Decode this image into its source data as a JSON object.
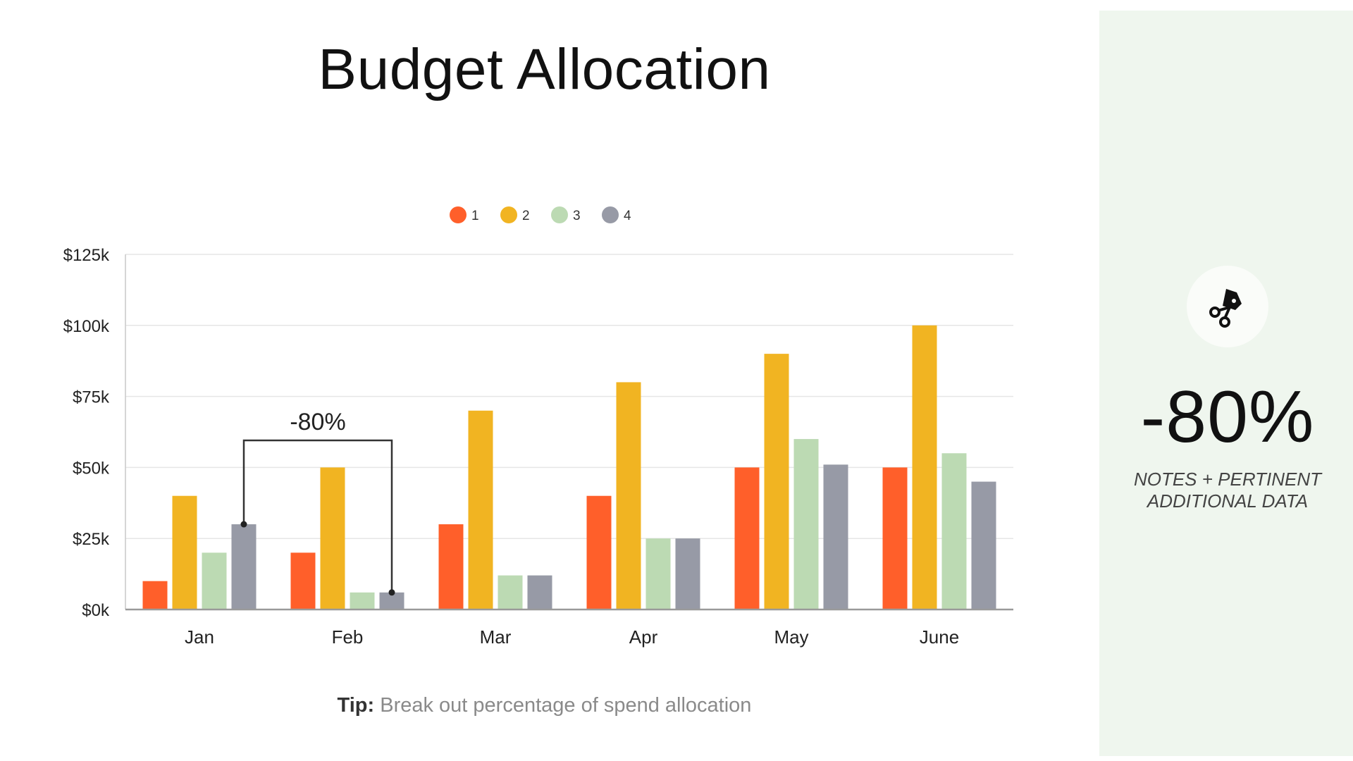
{
  "title": "Budget Allocation",
  "tip": {
    "label": "Tip:",
    "text": " Break out percentage of spend allocation"
  },
  "side_panel": {
    "icon": "scissors-tag-icon",
    "value": "-80%",
    "note_line1": "NOTES + PERTINENT",
    "note_line2": "ADDITIONAL DATA"
  },
  "chart_data": {
    "type": "bar",
    "categories": [
      "Jan",
      "Feb",
      "Mar",
      "Apr",
      "May",
      "June"
    ],
    "series": [
      {
        "name": "1",
        "color": "#ff5f2a",
        "values": [
          10,
          20,
          30,
          40,
          50,
          50
        ]
      },
      {
        "name": "2",
        "color": "#f1b422",
        "values": [
          40,
          50,
          70,
          80,
          90,
          100
        ]
      },
      {
        "name": "3",
        "color": "#bcdab3",
        "values": [
          20,
          6,
          12,
          25,
          60,
          55
        ]
      },
      {
        "name": "4",
        "color": "#979aa6",
        "values": [
          30,
          6,
          12,
          25,
          51,
          45
        ]
      }
    ],
    "ylim": [
      0,
      125
    ],
    "yticks": [
      0,
      25,
      50,
      75,
      100,
      125
    ],
    "ytick_labels": [
      "$0k",
      "$25k",
      "$50k",
      "$75k",
      "$100k",
      "$125k"
    ],
    "legend_position": "top-center",
    "grid": true,
    "annotation": {
      "text": "-80%",
      "from": {
        "category": "Jan",
        "series": "4",
        "value": 30
      },
      "to": {
        "category": "Feb",
        "series": "4",
        "value": 6
      }
    }
  }
}
